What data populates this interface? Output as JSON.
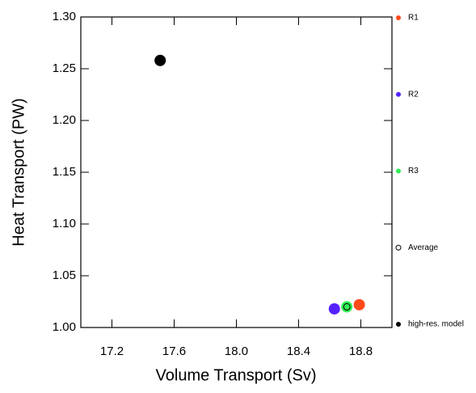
{
  "chart_data": {
    "type": "scatter",
    "x_label": "Volume Transport (Sv)",
    "y_label": "Heat Transport (PW)",
    "xlim": [
      17.0,
      19.0
    ],
    "xticks": [
      17.2,
      17.6,
      {
        "value": 18.0,
        "label": "18.0"
      },
      18.4,
      18.8
    ],
    "ylim": [
      1.0,
      1.3
    ],
    "yticks": [
      {
        "value": 1.0,
        "label": "1.00"
      },
      1.05,
      {
        "value": 1.1,
        "label": "1.10"
      },
      1.15,
      {
        "value": 1.2,
        "label": "1.20"
      },
      1.25,
      {
        "value": 1.3,
        "label": "1.30"
      }
    ],
    "series": [
      {
        "name": "R1",
        "color": "#ff4a1c",
        "x": [
          18.79
        ],
        "values": [
          1.022
        ]
      },
      {
        "name": "R2",
        "color": "#5522ff",
        "x": [
          18.63
        ],
        "values": [
          1.018
        ]
      },
      {
        "name": "R3",
        "color": "#33ee55",
        "x": [
          18.71
        ],
        "values": [
          1.02
        ]
      },
      {
        "name": "Average",
        "color": "#000000",
        "hollow": true,
        "x": [
          18.71
        ],
        "values": [
          1.02
        ]
      },
      {
        "name": "high-res. model",
        "color": "#000000",
        "x": [
          17.51
        ],
        "values": [
          1.258
        ]
      }
    ],
    "legend": "right"
  }
}
